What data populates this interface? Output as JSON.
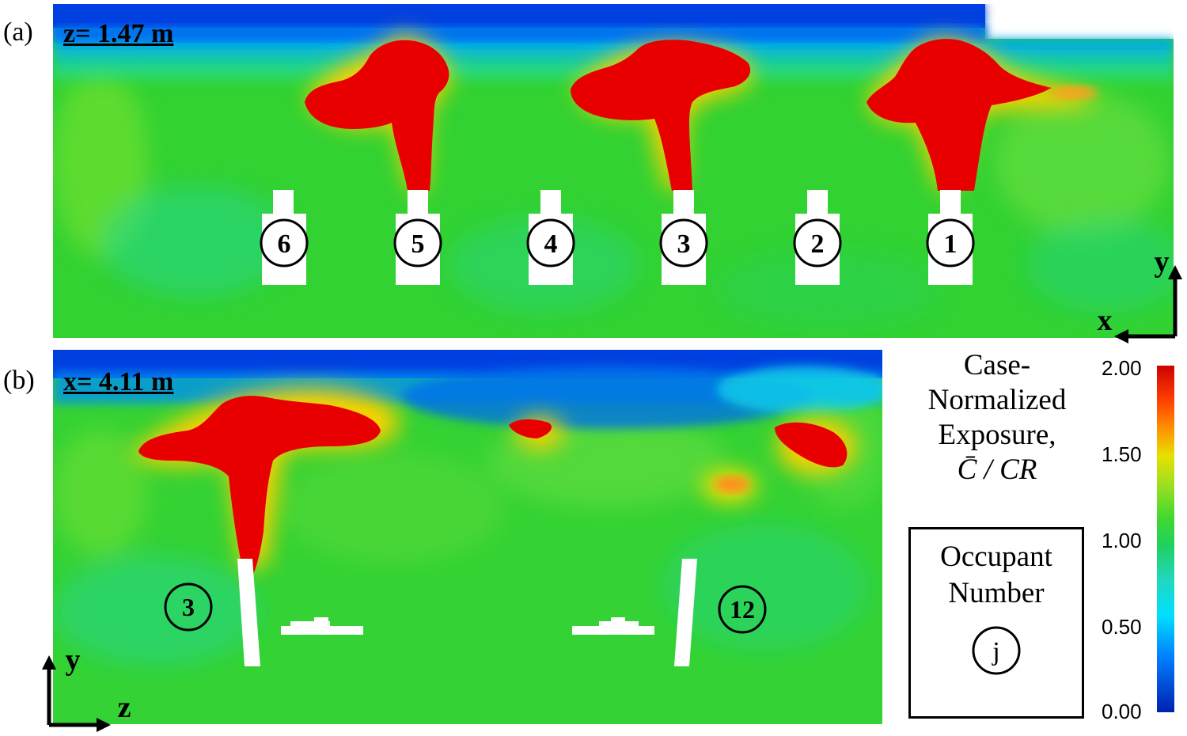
{
  "panel_a": {
    "label": "(a)",
    "plane": "z= 1.47 m",
    "occupants": [
      "6",
      "5",
      "4",
      "3",
      "2",
      "1"
    ],
    "axes": {
      "vertical": "y",
      "horizontal": "x"
    }
  },
  "panel_b": {
    "label": "(b)",
    "plane": "x= 4.11 m",
    "occupants": [
      "3",
      "12"
    ],
    "axes": {
      "vertical": "y",
      "horizontal": "z"
    }
  },
  "legend": {
    "title_lines": [
      "Case-",
      "Normalized",
      "Exposure,",
      "C̄ / CR"
    ],
    "box_lines": [
      "Occupant",
      "Number"
    ],
    "box_symbol": "j"
  },
  "colorbar": {
    "ticks": [
      "2.00",
      "1.50",
      "1.00",
      "0.50",
      "0.00"
    ],
    "colors": [
      "#0000a8",
      "#0050ff",
      "#00e0ff",
      "#20e060",
      "#30d030",
      "#80e020",
      "#e8e800",
      "#ff8000",
      "#e00000"
    ]
  }
}
